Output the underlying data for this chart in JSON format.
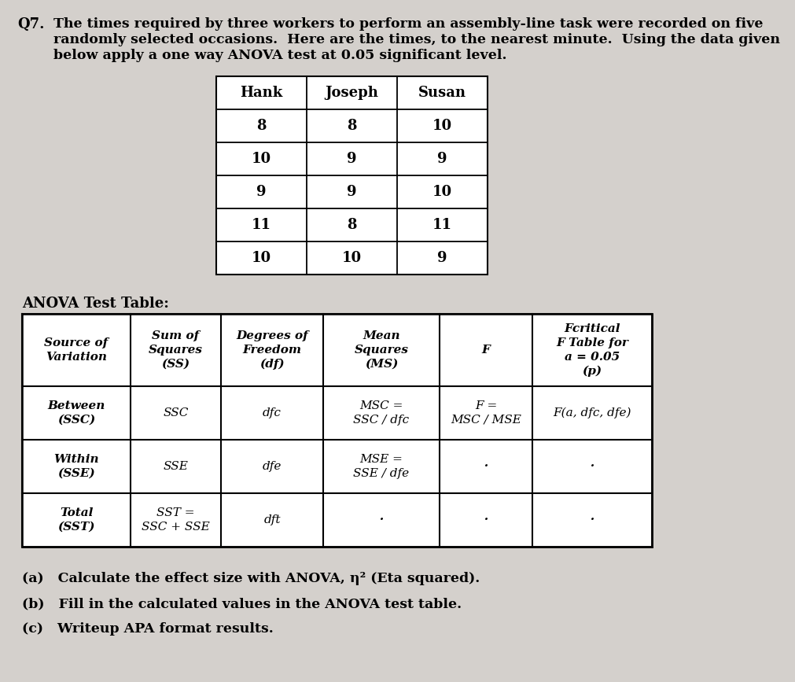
{
  "title_q": "Q7.",
  "title_lines": [
    "The times required by three workers to perform an assembly-line task were recorded on five",
    "randomly selected occasions.  Here are the times, to the nearest minute.  Using the data given",
    "below apply a one way ANOVA test at 0.05 significant level."
  ],
  "data_table_headers": [
    "Hank",
    "Joseph",
    "Susan"
  ],
  "data_table_rows": [
    [
      "8",
      "8",
      "10"
    ],
    [
      "10",
      "9",
      "9"
    ],
    [
      "9",
      "9",
      "10"
    ],
    [
      "11",
      "8",
      "11"
    ],
    [
      "10",
      "10",
      "9"
    ]
  ],
  "anova_label": "ANOVA Test Table:",
  "anova_col_headers_line1": [
    "Source of",
    "Sum of",
    "Degrees of",
    "Mean",
    "",
    "Fcritical"
  ],
  "anova_col_headers_line2": [
    "Variation",
    "Squares",
    "Freedom",
    "Squares",
    "F",
    "F Table for"
  ],
  "anova_col_headers_line3": [
    "",
    "(SS)",
    "(df)",
    "(MS)",
    "",
    "a = 0.05"
  ],
  "anova_col_headers_line4": [
    "",
    "",
    "",
    "",
    "",
    "(p)"
  ],
  "anova_rows": [
    [
      "Between\n(SSC)",
      "SSC",
      "dfc",
      "MSC =\nSSC / dfc",
      "F =\nMSC / MSE",
      "F(a, dfc, dfe)"
    ],
    [
      "Within\n(SSE)",
      "SSE",
      "dfe",
      "MSE =\nSSE / dfe",
      "·",
      "·"
    ],
    [
      "Total\n(SST)",
      "SST =\nSSC + SSE",
      "dft",
      "·",
      "·",
      "·"
    ]
  ],
  "footnote_a": "(a)   Calculate the effect size with ANOVA, η² (Eta squared).",
  "footnote_b": "(b)   Fill in the calculated values in the ANOVA test table.",
  "footnote_c": "(c)   Writeup APA format results.",
  "bg_color": "#d4d0cc",
  "table_bg": "#f5f5f5",
  "text_color": "#000000"
}
